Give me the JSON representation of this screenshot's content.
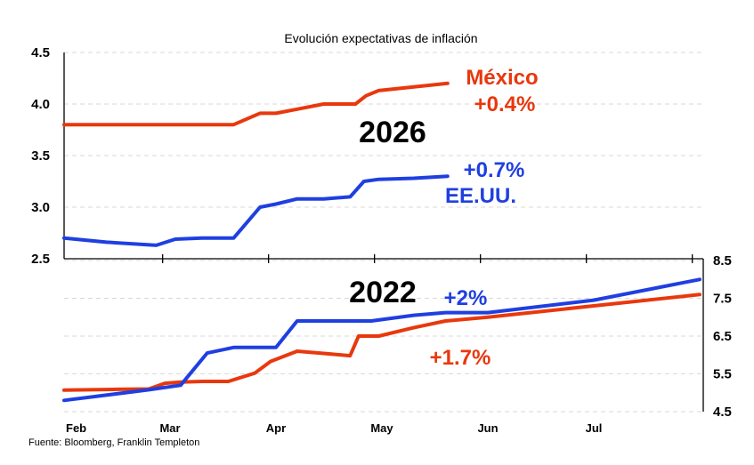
{
  "chart_data": {
    "type": "line",
    "title": "Evolución expectativas de inflación",
    "source": "Fuente: Bloomberg, Franklin Templeton",
    "colors": {
      "mexico": "#e8380d",
      "us": "#1f3fe0"
    },
    "x_ticks": [
      "Feb",
      "Mar",
      "Apr",
      "May",
      "Jun",
      "Jul"
    ],
    "panels": [
      {
        "label": "2026",
        "y_axis": "left",
        "ylim": [
          2.5,
          4.5
        ],
        "yticks": [
          "2.5",
          "3.0",
          "3.5",
          "4.0",
          "4.5"
        ],
        "series": [
          {
            "name": "México",
            "color_key": "mexico",
            "annotation": "+0.4%",
            "points": [
              [
                0,
                3.8
              ],
              [
                0.5,
                3.8
              ],
              [
                1,
                3.8
              ],
              [
                1.3,
                3.8
              ],
              [
                1.6,
                3.8
              ],
              [
                1.85,
                3.91
              ],
              [
                2,
                3.91
              ],
              [
                2.2,
                3.95
              ],
              [
                2.45,
                4.0
              ],
              [
                2.75,
                4.0
              ],
              [
                2.85,
                4.08
              ],
              [
                2.97,
                4.13
              ],
              [
                3.25,
                4.16
              ],
              [
                3.62,
                4.2
              ]
            ]
          },
          {
            "name": "EE.UU.",
            "color_key": "us",
            "annotation": "+0.7%",
            "points": [
              [
                0,
                2.7
              ],
              [
                0.4,
                2.66
              ],
              [
                0.87,
                2.63
              ],
              [
                1.05,
                2.69
              ],
              [
                1.3,
                2.7
              ],
              [
                1.6,
                2.7
              ],
              [
                1.85,
                3.0
              ],
              [
                2,
                3.03
              ],
              [
                2.2,
                3.08
              ],
              [
                2.45,
                3.08
              ],
              [
                2.7,
                3.1
              ],
              [
                2.83,
                3.25
              ],
              [
                2.97,
                3.27
              ],
              [
                3.3,
                3.28
              ],
              [
                3.62,
                3.3
              ]
            ]
          }
        ]
      },
      {
        "label": "2022",
        "y_axis": "right",
        "ylim": [
          4.5,
          8.5
        ],
        "yticks": [
          "4.5",
          "5.5",
          "6.5",
          "7.5",
          "8.5"
        ],
        "series": [
          {
            "name": "",
            "color_key": "mexico",
            "annotation": "+1.7%",
            "points": [
              [
                0,
                5.07
              ],
              [
                0.5,
                5.09
              ],
              [
                0.8,
                5.1
              ],
              [
                0.95,
                5.25
              ],
              [
                1.1,
                5.28
              ],
              [
                1.3,
                5.3
              ],
              [
                1.55,
                5.3
              ],
              [
                1.8,
                5.52
              ],
              [
                1.95,
                5.83
              ],
              [
                2.2,
                6.1
              ],
              [
                2.5,
                6.03
              ],
              [
                2.7,
                5.98
              ],
              [
                2.78,
                6.5
              ],
              [
                2.97,
                6.5
              ],
              [
                3.3,
                6.72
              ],
              [
                3.6,
                6.9
              ],
              [
                4,
                7.0
              ],
              [
                5,
                7.3
              ],
              [
                6,
                7.6
              ]
            ]
          },
          {
            "name": "",
            "color_key": "us",
            "annotation": "+2%",
            "points": [
              [
                0,
                4.8
              ],
              [
                0.8,
                5.08
              ],
              [
                1.1,
                5.2
              ],
              [
                1.35,
                6.05
              ],
              [
                1.6,
                6.2
              ],
              [
                1.8,
                6.2
              ],
              [
                2,
                6.2
              ],
              [
                2.2,
                6.9
              ],
              [
                2.45,
                6.9
              ],
              [
                2.9,
                6.9
              ],
              [
                3.3,
                7.05
              ],
              [
                3.6,
                7.12
              ],
              [
                4,
                7.12
              ],
              [
                5,
                7.45
              ],
              [
                6,
                8.0
              ]
            ]
          }
        ]
      }
    ]
  }
}
